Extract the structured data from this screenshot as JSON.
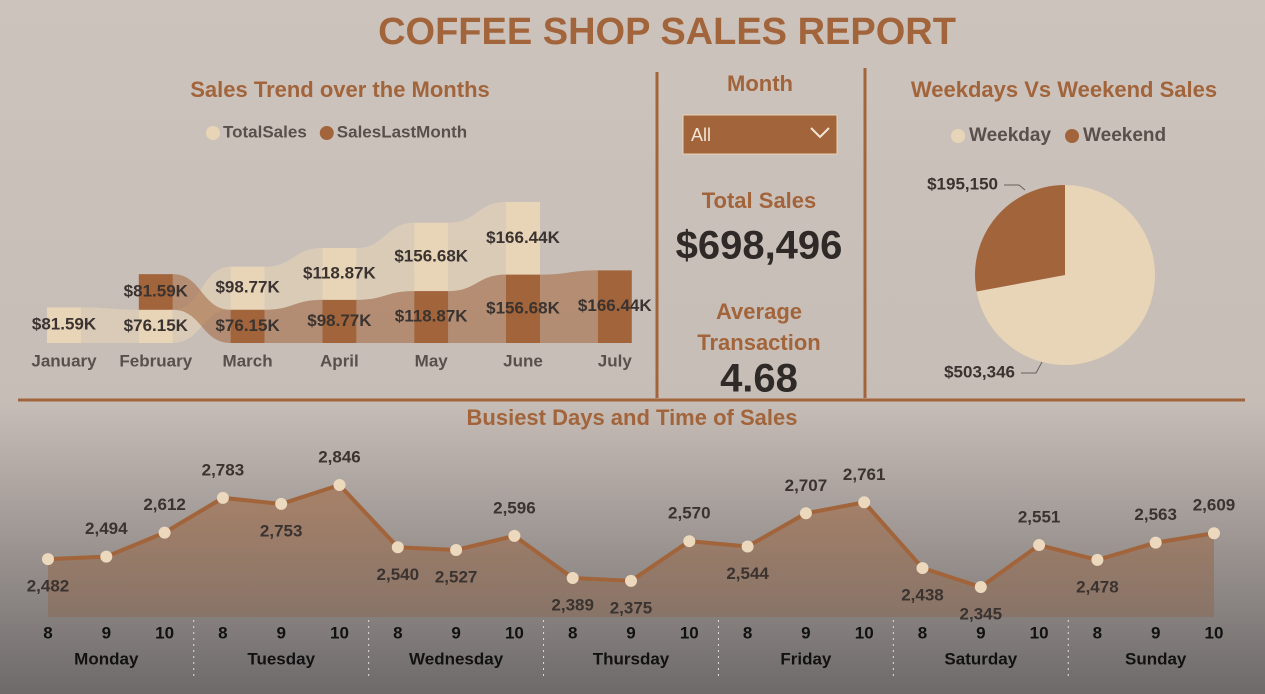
{
  "title": "COFFEE SHOP SALES REPORT",
  "slicer": {
    "label": "Month",
    "value": "All"
  },
  "kpis": [
    {
      "label": "Total Sales",
      "value": "$698,496"
    },
    {
      "label": "Average Transaction",
      "value": "4.68"
    }
  ],
  "chart_data": [
    {
      "type": "ribbon",
      "title": "Sales Trend over the Months",
      "categories": [
        "January",
        "February",
        "March",
        "April",
        "May",
        "June",
        "July"
      ],
      "series": [
        {
          "name": "TotalSales",
          "color": "#e8d5b7",
          "values": [
            81590,
            76150,
            98770,
            118870,
            156680,
            166440,
            null
          ],
          "value_labels": [
            "$81.59K",
            "$76.15K",
            "$98.77K",
            "$118.87K",
            "$156.68K",
            "$166.44K",
            null
          ]
        },
        {
          "name": "SalesLastMonth",
          "color": "#a2643a",
          "values": [
            null,
            81590,
            76150,
            98770,
            118870,
            156680,
            166440
          ],
          "value_labels": [
            null,
            "$81.59K",
            "$76.15K",
            "$98.77K",
            "$118.87K",
            "$156.68K",
            "$166.44K"
          ]
        }
      ]
    },
    {
      "type": "pie",
      "title": "Weekdays Vs Weekend Sales",
      "categories": [
        "Weekday",
        "Weekend"
      ],
      "values": [
        503346,
        195150
      ],
      "value_labels": [
        "$503,346",
        "$195,150"
      ],
      "colors": [
        "#e8d5b7",
        "#a2643a"
      ]
    },
    {
      "type": "line",
      "title": "Busiest Days and Time of Sales",
      "color": "#a2643a",
      "marker_color": "#ecd9bd",
      "groups": [
        "Monday",
        "Tuesday",
        "Wednesday",
        "Thursday",
        "Friday",
        "Saturday",
        "Sunday"
      ],
      "categories": [
        "8",
        "9",
        "10",
        "8",
        "9",
        "10",
        "8",
        "9",
        "10",
        "8",
        "9",
        "10",
        "8",
        "9",
        "10",
        "8",
        "9",
        "10",
        "8",
        "9",
        "10"
      ],
      "values": [
        2482,
        2494,
        2612,
        2783,
        2753,
        2846,
        2540,
        2527,
        2596,
        2389,
        2375,
        2570,
        2544,
        2707,
        2761,
        2438,
        2345,
        2551,
        2478,
        2563,
        2609
      ],
      "value_labels": [
        "2,482",
        "2,494",
        "2,612",
        "2,783",
        "2,753",
        "2,846",
        "2,540",
        "2,527",
        "2,596",
        "2,389",
        "2,375",
        "2,570",
        "2,544",
        "2,707",
        "2,761",
        "2,438",
        "2,345",
        "2,551",
        "2,478",
        "2,563",
        "2,609"
      ]
    }
  ]
}
